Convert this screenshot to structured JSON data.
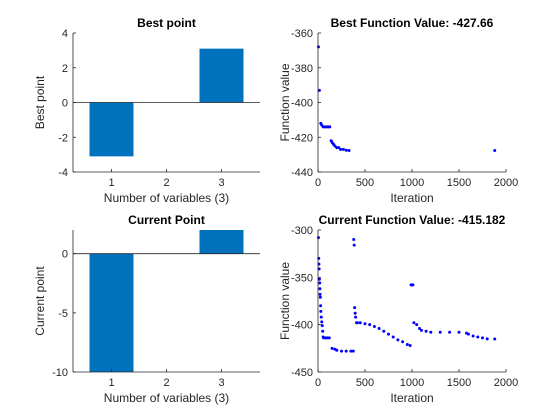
{
  "figure": {
    "background": "#ffffff",
    "bar_color": "#0072bd",
    "dot_color": "#0000ff"
  },
  "chart_data": [
    {
      "type": "bar",
      "title": "Best point",
      "xlabel": "Number of variables (3)",
      "ylabel": "Best point",
      "categories": [
        "1",
        "2",
        "3"
      ],
      "values": [
        -3.1,
        0,
        3.1
      ],
      "xlim": [
        0.3,
        3.7
      ],
      "ylim": [
        -4,
        4
      ],
      "xticks": [
        1,
        2,
        3
      ],
      "yticks": [
        -4,
        -2,
        0,
        2,
        4
      ],
      "grid": false
    },
    {
      "type": "scatter",
      "title": "Best Function Value: -427.66",
      "xlabel": "Iteration",
      "ylabel": "Function value",
      "xlim": [
        0,
        2000
      ],
      "ylim": [
        -440,
        -360
      ],
      "xticks": [
        0,
        500,
        1000,
        1500,
        2000
      ],
      "yticks": [
        -440,
        -420,
        -400,
        -380,
        -360
      ],
      "points": [
        [
          5,
          -368
        ],
        [
          15,
          -393
        ],
        [
          30,
          -412
        ],
        [
          40,
          -413
        ],
        [
          55,
          -414
        ],
        [
          70,
          -414
        ],
        [
          85,
          -414
        ],
        [
          100,
          -414
        ],
        [
          115,
          -414
        ],
        [
          125,
          -414
        ],
        [
          140,
          -422
        ],
        [
          150,
          -423
        ],
        [
          165,
          -424
        ],
        [
          180,
          -425
        ],
        [
          200,
          -426
        ],
        [
          220,
          -426
        ],
        [
          240,
          -427
        ],
        [
          270,
          -427
        ],
        [
          300,
          -427.5
        ],
        [
          330,
          -427.66
        ],
        [
          1880,
          -427.66
        ]
      ],
      "grid": false
    },
    {
      "type": "bar",
      "title": "Current Point",
      "xlabel": "Number of variables (3)",
      "ylabel": "Current point",
      "categories": [
        "1",
        "2",
        "3"
      ],
      "values": [
        -10,
        0,
        2
      ],
      "xlim": [
        0.3,
        3.7
      ],
      "ylim": [
        -10,
        2
      ],
      "xticks": [
        1,
        2,
        3
      ],
      "yticks": [
        -10,
        -5,
        0
      ],
      "grid": false
    },
    {
      "type": "scatter",
      "title": "Current Function Value: -415.182",
      "xlabel": "Iteration",
      "ylabel": "Function value",
      "xlim": [
        0,
        2000
      ],
      "ylim": [
        -450,
        -300
      ],
      "xticks": [
        0,
        500,
        1000,
        1500,
        2000
      ],
      "yticks": [
        -450,
        -400,
        -350,
        -300
      ],
      "points": [
        [
          5,
          -308
        ],
        [
          8,
          -330
        ],
        [
          10,
          -336
        ],
        [
          12,
          -341
        ],
        [
          15,
          -352
        ],
        [
          18,
          -356
        ],
        [
          20,
          -362
        ],
        [
          22,
          -368
        ],
        [
          25,
          -371
        ],
        [
          28,
          -380
        ],
        [
          30,
          -386
        ],
        [
          35,
          -392
        ],
        [
          40,
          -397
        ],
        [
          45,
          -401
        ],
        [
          50,
          -407
        ],
        [
          55,
          -413
        ],
        [
          60,
          -414
        ],
        [
          80,
          -414
        ],
        [
          100,
          -414
        ],
        [
          120,
          -414
        ],
        [
          150,
          -425
        ],
        [
          180,
          -426
        ],
        [
          200,
          -427
        ],
        [
          250,
          -428
        ],
        [
          300,
          -428
        ],
        [
          350,
          -428
        ],
        [
          375,
          -428
        ],
        [
          380,
          -310
        ],
        [
          385,
          -316
        ],
        [
          390,
          -382
        ],
        [
          395,
          -388
        ],
        [
          400,
          -392
        ],
        [
          410,
          -398
        ],
        [
          420,
          -398
        ],
        [
          450,
          -398
        ],
        [
          500,
          -399
        ],
        [
          550,
          -400
        ],
        [
          600,
          -402
        ],
        [
          650,
          -404
        ],
        [
          700,
          -407
        ],
        [
          750,
          -410
        ],
        [
          800,
          -413
        ],
        [
          850,
          -416
        ],
        [
          900,
          -418
        ],
        [
          950,
          -421
        ],
        [
          980,
          -422
        ],
        [
          990,
          -358
        ],
        [
          1000,
          -358
        ],
        [
          1010,
          -358
        ],
        [
          1020,
          -398
        ],
        [
          1050,
          -400
        ],
        [
          1080,
          -404
        ],
        [
          1100,
          -406
        ],
        [
          1150,
          -407
        ],
        [
          1200,
          -408
        ],
        [
          1300,
          -408
        ],
        [
          1400,
          -408
        ],
        [
          1500,
          -408
        ],
        [
          1580,
          -409
        ],
        [
          1600,
          -410
        ],
        [
          1650,
          -412
        ],
        [
          1700,
          -413
        ],
        [
          1750,
          -414
        ],
        [
          1800,
          -415
        ],
        [
          1880,
          -415.182
        ]
      ],
      "grid": false
    }
  ]
}
